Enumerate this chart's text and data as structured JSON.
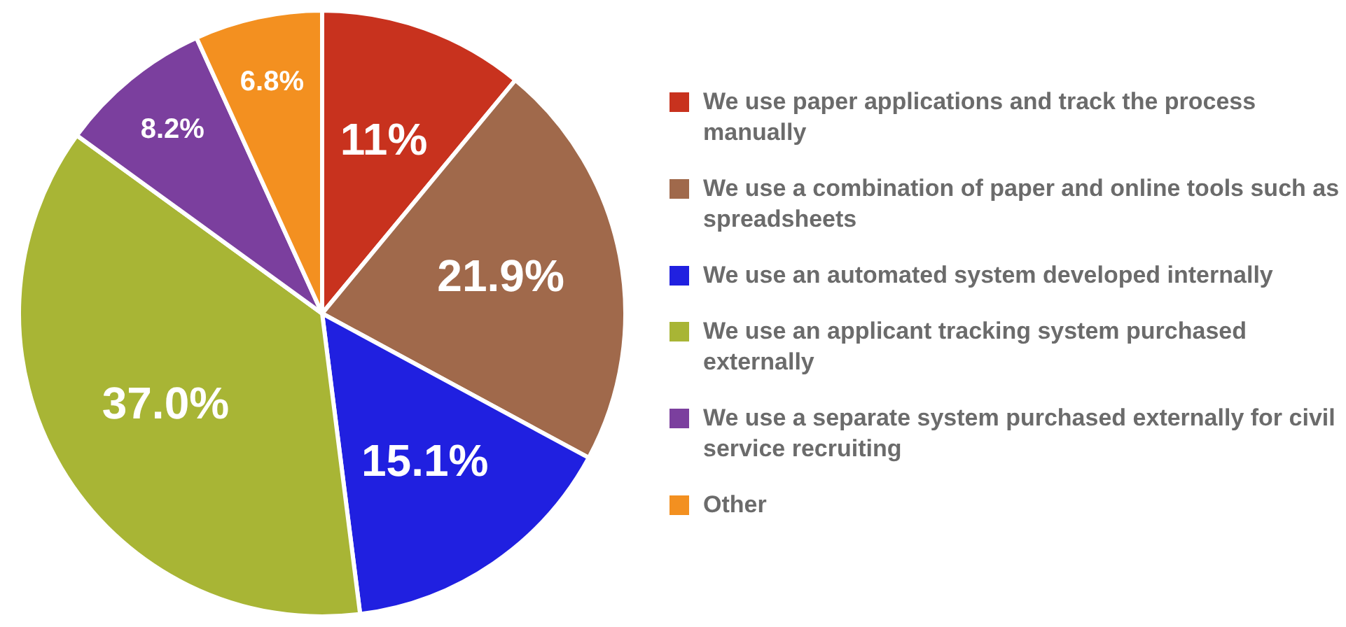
{
  "chart_data": {
    "type": "pie",
    "legend": "right",
    "categories": [
      "We use paper applications and track the process manually",
      "We use a combination of paper and online tools such as spreadsheets",
      "We use an automated system developed internally",
      "We use an applicant tracking system purchased externally",
      "We use a separate system purchased externally for civil service recruiting",
      "Other"
    ],
    "values": [
      11,
      21.9,
      15.1,
      37.0,
      8.2,
      6.8
    ],
    "value_labels": [
      "11%",
      "21.9%",
      "15.1%",
      "37.0%",
      "8.2%",
      "6.8%"
    ],
    "colors": [
      "#c8321e",
      "#a0694b",
      "#2020e0",
      "#a8b535",
      "#7b3f9e",
      "#f39020"
    ]
  }
}
